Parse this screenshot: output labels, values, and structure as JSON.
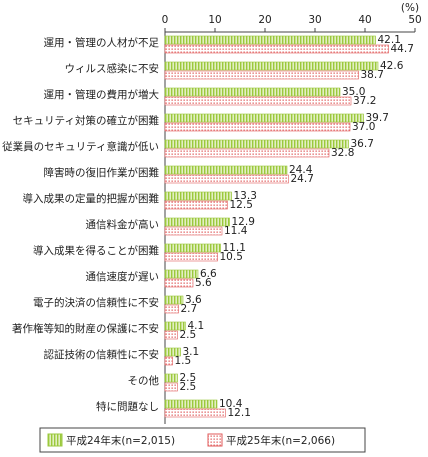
{
  "chart_data": {
    "type": "bar",
    "orientation": "horizontal",
    "unit_label": "(%)",
    "categories": [
      "運用・管理の人材が不足",
      "ウィルス感染に不安",
      "運用・管理の費用が増大",
      "セキュリティ対策の確立が困難",
      "従業員のセキュリティ意識が低い",
      "障害時の復旧作業が困難",
      "導入成果の定量的把握が困難",
      "通信料金が高い",
      "導入成果を得ることが困難",
      "通信速度が遅い",
      "電子的決済の信頼性に不安",
      "著作権等知的財産の保護に不安",
      "認証技術の信頼性に不安",
      "その他",
      "特に問題なし"
    ],
    "series": [
      {
        "name": "平成24年末(n=2,015)",
        "color": "#9bc93c",
        "values": [
          42.1,
          42.6,
          35.0,
          39.7,
          36.7,
          24.4,
          13.3,
          12.9,
          11.1,
          6.6,
          3.6,
          4.1,
          3.1,
          2.5,
          10.4
        ],
        "value_labels": [
          "42.1",
          "42.6",
          "35.0",
          "39.7",
          "36.7",
          "24.4",
          "13.3",
          "12.9",
          "11.1",
          "6.6",
          "3.6",
          "4.1",
          "3.1",
          "2.5",
          "10.4"
        ]
      },
      {
        "name": "平成25年末(n=2,066)",
        "color": "#e05a5a",
        "values": [
          44.7,
          38.7,
          37.2,
          37.0,
          32.8,
          24.7,
          12.5,
          11.4,
          10.5,
          5.6,
          2.7,
          2.5,
          1.5,
          2.5,
          12.1
        ],
        "value_labels": [
          "44.7",
          "38.7",
          "37.2",
          "37.0",
          "32.8",
          "24.7",
          "12.5",
          "11.4",
          "10.5",
          "5.6",
          "2.7",
          "2.5",
          "1.5",
          "2.5",
          "12.1"
        ]
      }
    ],
    "xlim": [
      0,
      50
    ],
    "xticks": [
      0,
      10,
      20,
      30,
      40,
      50
    ],
    "grid": false
  }
}
